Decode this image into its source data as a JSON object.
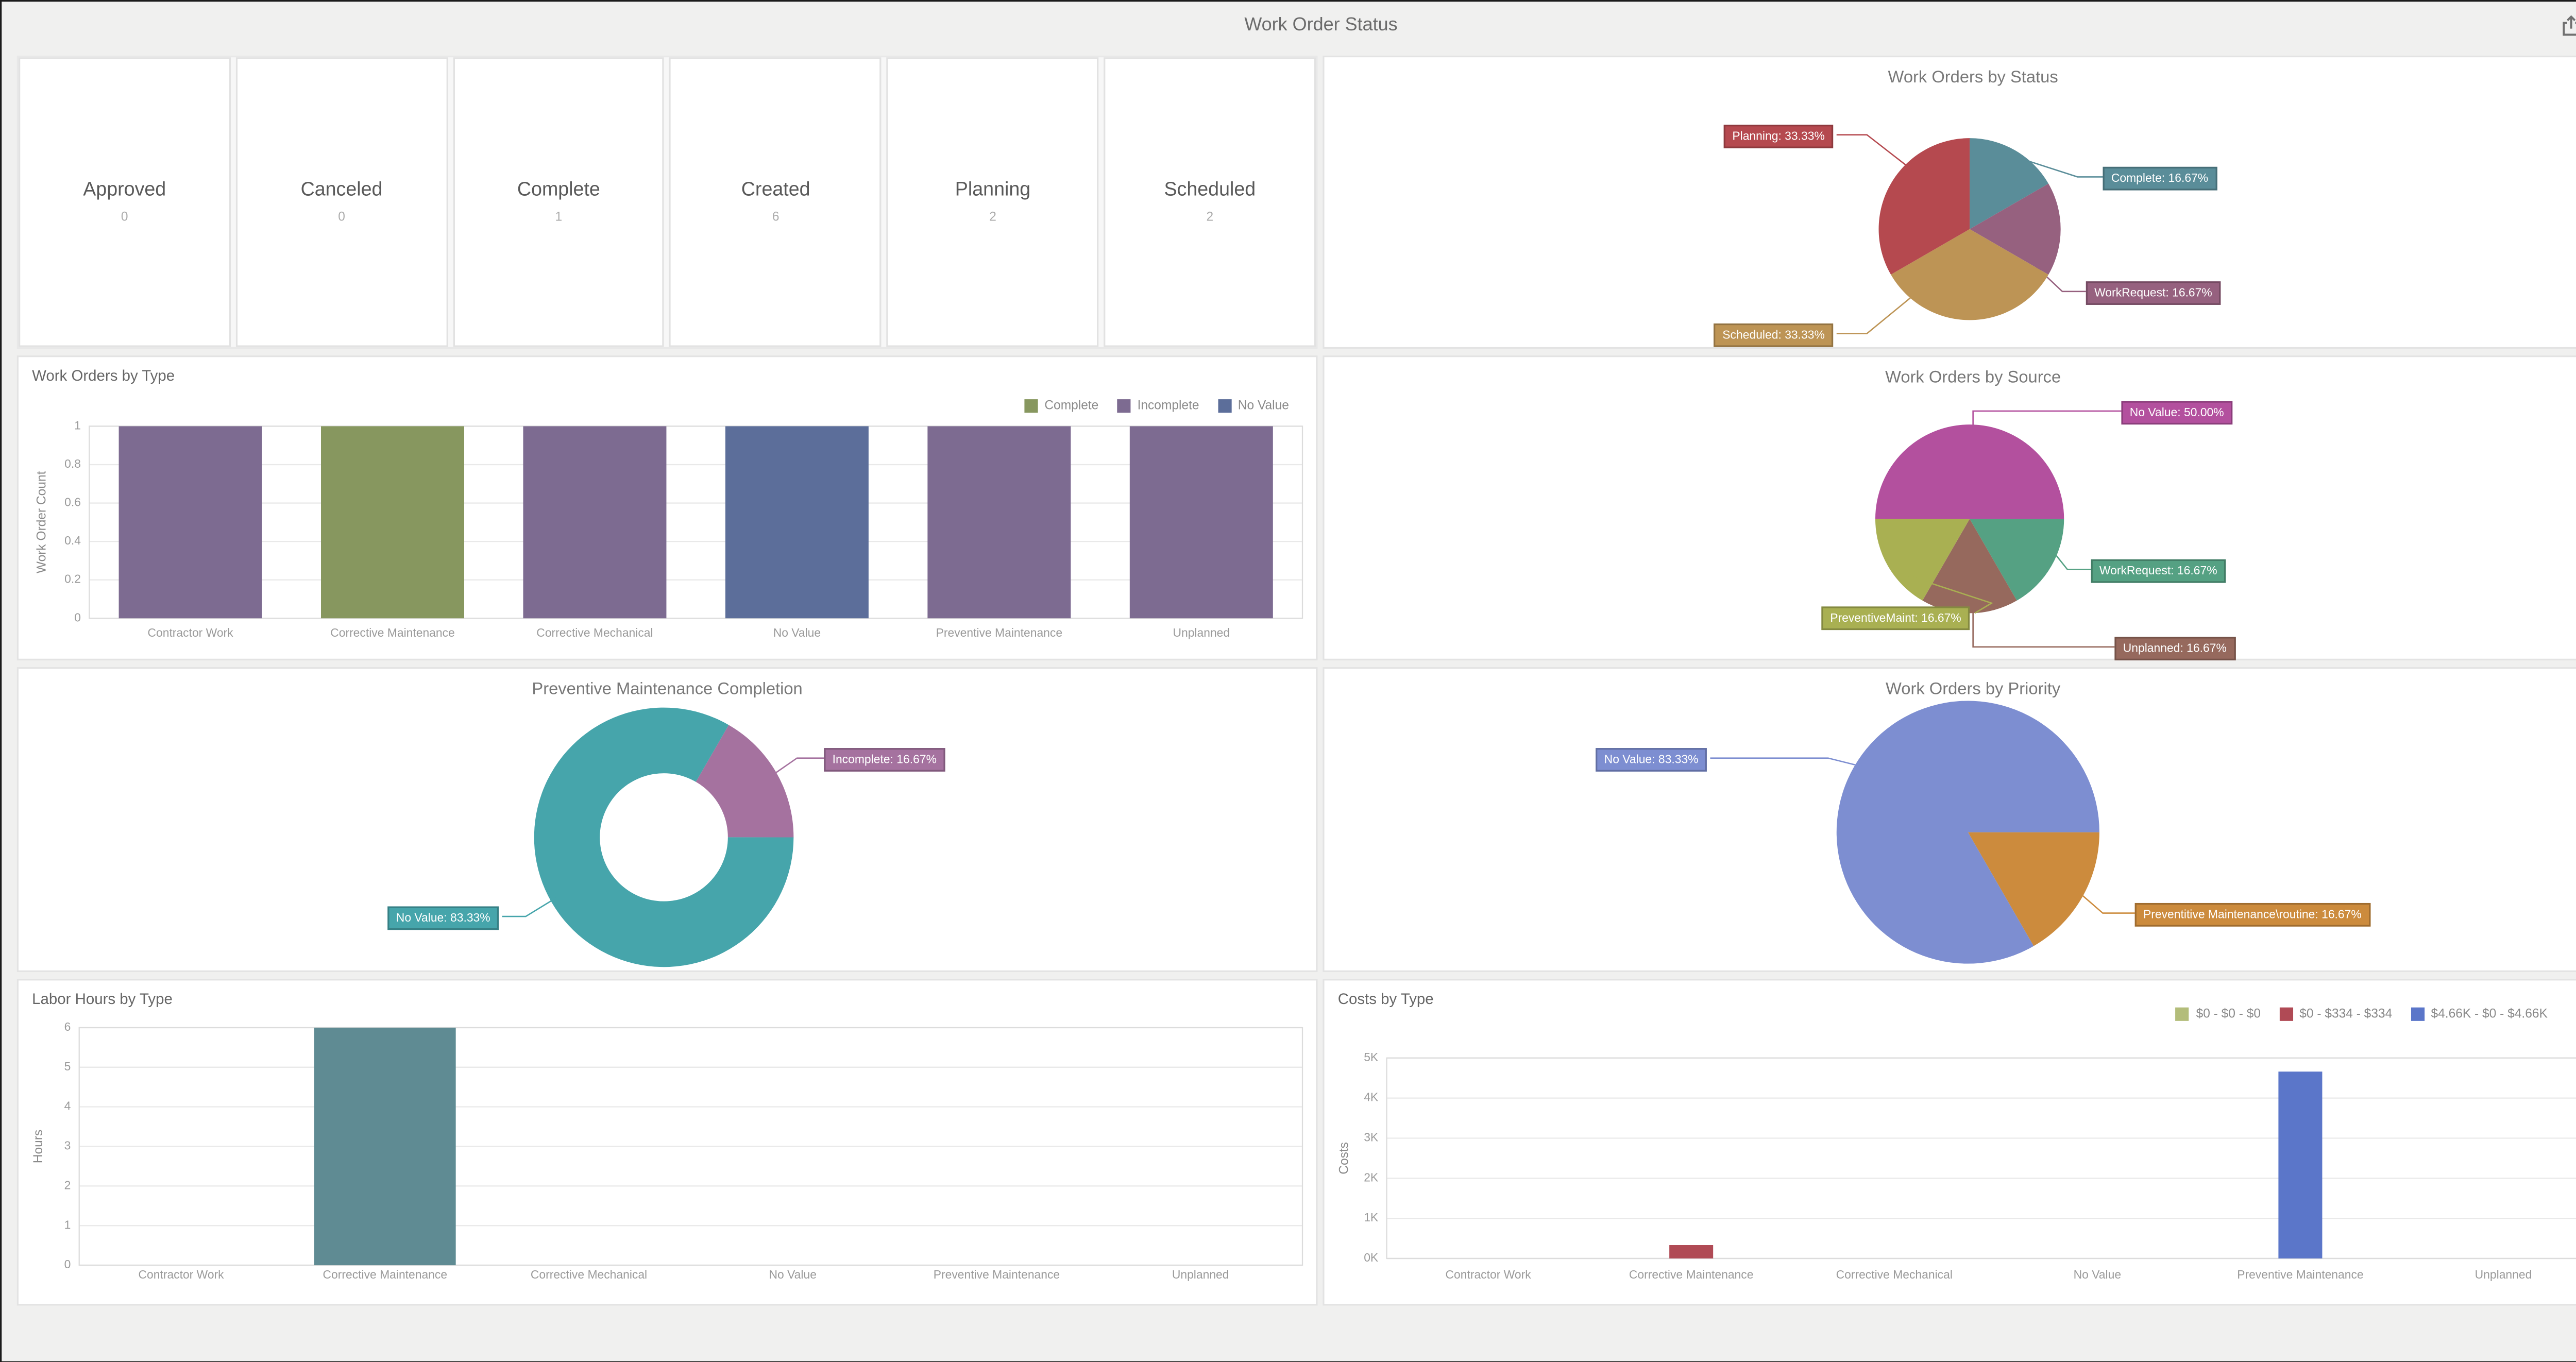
{
  "window": {
    "title": "Work Order Status"
  },
  "status_cards": [
    {
      "label": "Approved",
      "count": "0"
    },
    {
      "label": "Canceled",
      "count": "0"
    },
    {
      "label": "Complete",
      "count": "1"
    },
    {
      "label": "Created",
      "count": "6"
    },
    {
      "label": "Planning",
      "count": "2"
    },
    {
      "label": "Scheduled",
      "count": "2"
    }
  ],
  "chart_data": [
    {
      "id": "work-orders-by-status",
      "type": "pie",
      "title": "Work Orders by Status",
      "slices": [
        {
          "name": "Complete",
          "pct": 16.67,
          "color": "#5a8d99",
          "label": "Complete: 16.67%"
        },
        {
          "name": "WorkRequest",
          "pct": 16.67,
          "color": "#96617f",
          "label": "WorkRequest: 16.67%"
        },
        {
          "name": "Scheduled",
          "pct": 33.33,
          "color": "#bd9455",
          "label": "Scheduled: 33.33%"
        },
        {
          "name": "Planning",
          "pct": 33.33,
          "color": "#b5494f",
          "label": "Planning: 33.33%"
        }
      ]
    },
    {
      "id": "work-orders-by-type",
      "type": "bar",
      "title": "Work Orders by Type",
      "ylabel": "Work Order Count",
      "ylim": [
        0,
        1
      ],
      "ytick_step": 0.2,
      "ytick_labels": [
        "0",
        "0.2",
        "0.4",
        "0.6",
        "0.8",
        "1"
      ],
      "categories": [
        "Contractor Work",
        "Corrective Maintenance",
        "Corrective Mechanical",
        "No Value",
        "Preventive Maintenance",
        "Unplanned"
      ],
      "legend": [
        {
          "label": "Complete",
          "color": "#87975f"
        },
        {
          "label": "Incomplete",
          "color": "#7d6b91"
        },
        {
          "label": "No Value",
          "color": "#5c6e9a"
        }
      ],
      "bars": [
        {
          "category": "Contractor Work",
          "value": 1,
          "series": "Incomplete",
          "color": "#7d6b91"
        },
        {
          "category": "Corrective Maintenance",
          "value": 1,
          "series": "Complete",
          "color": "#87975f"
        },
        {
          "category": "Corrective Mechanical",
          "value": 1,
          "series": "Incomplete",
          "color": "#7d6b91"
        },
        {
          "category": "No Value",
          "value": 1,
          "series": "No Value",
          "color": "#5c6e9a"
        },
        {
          "category": "Preventive Maintenance",
          "value": 1,
          "series": "Incomplete",
          "color": "#7d6b91"
        },
        {
          "category": "Unplanned",
          "value": 1,
          "series": "Incomplete",
          "color": "#7d6b91"
        }
      ]
    },
    {
      "id": "work-orders-by-source",
      "type": "pie",
      "title": "Work Orders by Source",
      "slices": [
        {
          "name": "No Value",
          "pct": 50.0,
          "color": "#b3509e",
          "label": "No Value: 50.00%"
        },
        {
          "name": "WorkRequest",
          "pct": 16.67,
          "color": "#55a183",
          "label": "WorkRequest: 16.67%"
        },
        {
          "name": "Unplanned",
          "pct": 16.67,
          "color": "#96695d",
          "label": "Unplanned: 16.67%"
        },
        {
          "name": "PreventiveMaint",
          "pct": 16.67,
          "color": "#a9b052",
          "label": "PreventiveMaint: 16.67%"
        }
      ]
    },
    {
      "id": "preventive-maintenance-completion",
      "type": "donut",
      "title": "Preventive Maintenance Completion",
      "slices": [
        {
          "name": "Incomplete",
          "pct": 16.67,
          "color": "#a5729f",
          "label": "Incomplete: 16.67%"
        },
        {
          "name": "No Value",
          "pct": 83.33,
          "color": "#46a5ab",
          "label": "No Value: 83.33%"
        }
      ]
    },
    {
      "id": "work-orders-by-priority",
      "type": "pie",
      "title": "Work Orders by Priority",
      "slices": [
        {
          "name": "Preventitive Maintenance\\routine",
          "pct": 16.67,
          "color": "#cc8b3d",
          "label": "Preventitive Maintenance\\routine: 16.67%"
        },
        {
          "name": "No Value",
          "pct": 83.33,
          "color": "#7d8ed1",
          "label": "No Value: 83.33%"
        }
      ]
    },
    {
      "id": "labor-hours-by-type",
      "type": "bar",
      "title": "Labor Hours by Type",
      "ylabel": "Hours",
      "ylim": [
        0,
        6
      ],
      "ytick_step": 1,
      "ytick_labels": [
        "0",
        "1",
        "2",
        "3",
        "4",
        "5",
        "6"
      ],
      "categories": [
        "Contractor Work",
        "Corrective Maintenance",
        "Corrective Mechanical",
        "No Value",
        "Preventive Maintenance",
        "Unplanned"
      ],
      "bars": [
        {
          "category": "Corrective Maintenance",
          "value": 6,
          "color": "#5f8b93"
        }
      ]
    },
    {
      "id": "costs-by-type",
      "type": "bar",
      "title": "Costs by Type",
      "ylabel": "Costs",
      "ylim": [
        0,
        5000
      ],
      "ytick_step": 1000,
      "ytick_labels": [
        "0K",
        "1K",
        "2K",
        "3K",
        "4K",
        "5K"
      ],
      "categories": [
        "Contractor Work",
        "Corrective Maintenance",
        "Corrective Mechanical",
        "No Value",
        "Preventive Maintenance",
        "Unplanned"
      ],
      "legend": [
        {
          "label": "$0 - $0 - $0",
          "color": "#b3bd7a"
        },
        {
          "label": "$0 - $334 - $334",
          "color": "#b04a55"
        },
        {
          "label": "$4.66K - $0 - $4.66K",
          "color": "#5b76c9"
        }
      ],
      "bars": [
        {
          "category": "Corrective Maintenance",
          "value": 334,
          "series": "$0 - $334 - $334",
          "color": "#b04a55"
        },
        {
          "category": "Preventive Maintenance",
          "value": 4660,
          "series": "$4.66K - $0 - $4.66K",
          "color": "#5b76c9"
        }
      ]
    }
  ]
}
